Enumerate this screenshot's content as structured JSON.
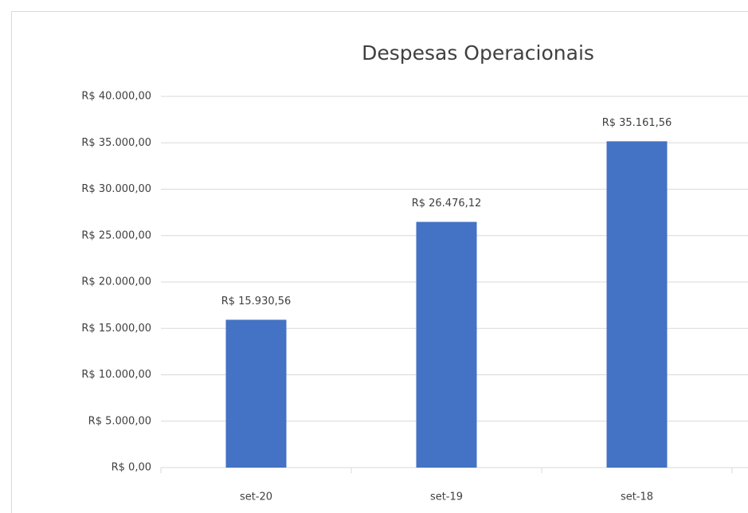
{
  "chart_data": {
    "type": "bar",
    "title": "Despesas Operacionais",
    "categories": [
      "set-20",
      "set-19",
      "set-18"
    ],
    "values": [
      15930.56,
      26476.12,
      35161.56
    ],
    "value_labels": [
      "R$ 15.930,56",
      "R$ 26.476,12",
      "R$ 35.161,56"
    ],
    "color": "#4472c4",
    "ylim": [
      0,
      40000
    ],
    "yticks": [
      {
        "value": 0,
        "label": "R$ 0,00"
      },
      {
        "value": 5000,
        "label": "R$ 5.000,00"
      },
      {
        "value": 10000,
        "label": "R$ 10.000,00"
      },
      {
        "value": 15000,
        "label": "R$ 15.000,00"
      },
      {
        "value": 20000,
        "label": "R$ 20.000,00"
      },
      {
        "value": 25000,
        "label": "R$ 25.000,00"
      },
      {
        "value": 30000,
        "label": "R$ 30.000,00"
      },
      {
        "value": 35000,
        "label": "R$ 35.000,00"
      },
      {
        "value": 40000,
        "label": "R$ 40.000,00"
      }
    ],
    "grid": true
  }
}
